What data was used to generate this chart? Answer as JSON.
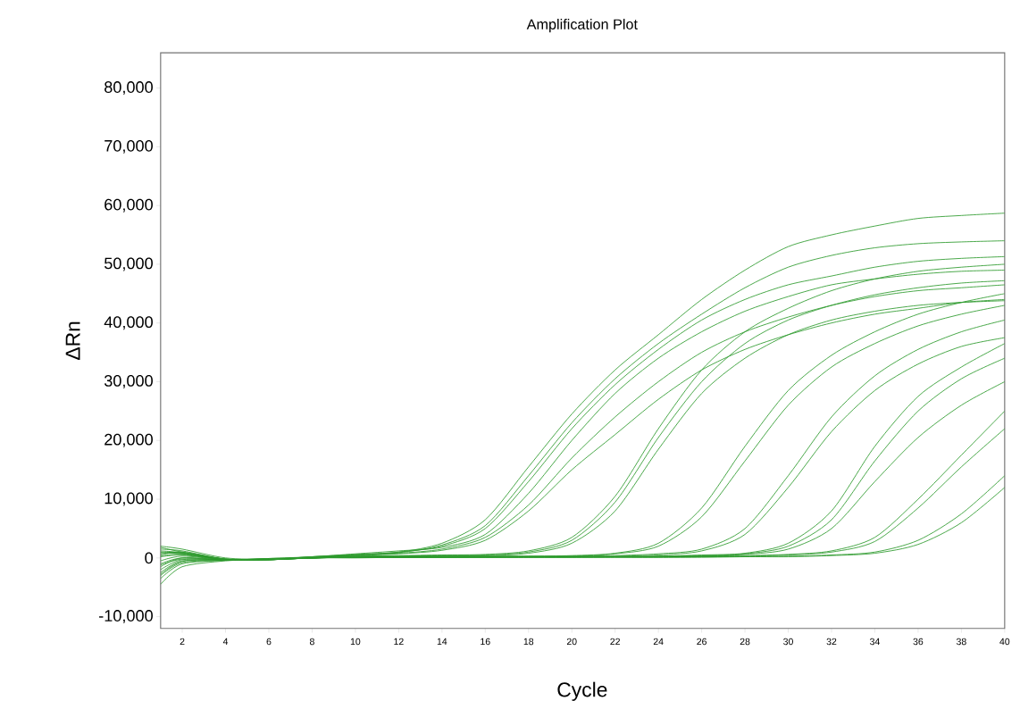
{
  "chart_data": {
    "type": "line",
    "title": "Amplification Plot",
    "xlabel": "Cycle",
    "ylabel": "ΔRn",
    "x": [
      1,
      2,
      4,
      6,
      8,
      10,
      12,
      14,
      16,
      18,
      20,
      22,
      24,
      26,
      28,
      30,
      32,
      34,
      36,
      38,
      40
    ],
    "xlim": [
      1,
      40
    ],
    "xticks": [
      2,
      4,
      6,
      8,
      10,
      12,
      14,
      16,
      18,
      20,
      22,
      24,
      26,
      28,
      30,
      32,
      34,
      36,
      38,
      40
    ],
    "ylim": [
      -12000,
      86000
    ],
    "yticks": [
      {
        "value": -10000,
        "label": "-10,000"
      },
      {
        "value": 0,
        "label": "0"
      },
      {
        "value": 10000,
        "label": "10,000"
      },
      {
        "value": 20000,
        "label": "20,000"
      },
      {
        "value": 30000,
        "label": "30,000"
      },
      {
        "value": 40000,
        "label": "40,000"
      },
      {
        "value": 50000,
        "label": "50,000"
      },
      {
        "value": 60000,
        "label": "60,000"
      },
      {
        "value": 70000,
        "label": "70,000"
      },
      {
        "value": 80000,
        "label": "80,000"
      }
    ],
    "grid": false,
    "legend": false,
    "marker": "none",
    "line_style": "solid",
    "series": [
      {
        "color": "#2e9a2e",
        "values": [
          2000,
          1500,
          0,
          -200,
          200,
          600,
          1000,
          2500,
          6500,
          15500,
          24500,
          32000,
          38000,
          44000,
          49000,
          53000,
          55000,
          56500,
          57800,
          58300,
          58700
        ]
      },
      {
        "color": "#2e9a2e",
        "values": [
          -4500,
          -1500,
          -500,
          -200,
          100,
          500,
          900,
          2200,
          5500,
          14000,
          23000,
          30500,
          36500,
          41500,
          46000,
          49500,
          51500,
          52800,
          53500,
          53800,
          54000
        ]
      },
      {
        "color": "#2e9a2e",
        "values": [
          1000,
          800,
          -300,
          -300,
          200,
          500,
          1000,
          2000,
          5000,
          13000,
          22000,
          29500,
          35500,
          40500,
          44000,
          46500,
          48000,
          49500,
          50500,
          51000,
          51300
        ]
      },
      {
        "color": "#2e9a2e",
        "values": [
          -2500,
          -500,
          -400,
          -100,
          200,
          700,
          1200,
          1800,
          4000,
          11000,
          20000,
          28000,
          34000,
          38500,
          42000,
          44500,
          46500,
          47500,
          48300,
          48800,
          49000
        ]
      },
      {
        "color": "#2e9a2e",
        "values": [
          500,
          1000,
          -200,
          -300,
          100,
          500,
          800,
          1500,
          3500,
          9000,
          17000,
          24000,
          30000,
          35000,
          38500,
          41000,
          43000,
          44500,
          45500,
          46000,
          46500
        ]
      },
      {
        "color": "#2e9a2e",
        "values": [
          -1500,
          0,
          -300,
          -200,
          100,
          400,
          700,
          1300,
          3000,
          8000,
          15000,
          21000,
          27000,
          32000,
          35500,
          38000,
          40000,
          41500,
          42500,
          43500,
          44000
        ]
      },
      {
        "color": "#2e9a2e",
        "values": [
          1500,
          1200,
          -200,
          -300,
          0,
          300,
          400,
          500,
          600,
          1200,
          3500,
          10500,
          22000,
          32000,
          38500,
          42500,
          45500,
          47500,
          48800,
          49500,
          50000
        ]
      },
      {
        "color": "#2e9a2e",
        "values": [
          -1000,
          0,
          -400,
          -200,
          0,
          200,
          300,
          400,
          500,
          1000,
          3000,
          9500,
          20500,
          30000,
          36500,
          40500,
          43000,
          44800,
          46000,
          46800,
          47200
        ]
      },
      {
        "color": "#2e9a2e",
        "values": [
          -3000,
          -800,
          -400,
          -100,
          100,
          300,
          300,
          400,
          400,
          800,
          2500,
          8000,
          18500,
          28000,
          34000,
          38000,
          40500,
          42000,
          43000,
          43500,
          43800
        ]
      },
      {
        "color": "#2e9a2e",
        "values": [
          1800,
          1000,
          -200,
          -300,
          0,
          200,
          200,
          300,
          300,
          300,
          400,
          800,
          2500,
          8500,
          19000,
          28500,
          34500,
          38500,
          41500,
          43500,
          45000
        ]
      },
      {
        "color": "#2e9a2e",
        "values": [
          -2000,
          -300,
          -300,
          -200,
          0,
          200,
          200,
          200,
          300,
          300,
          300,
          700,
          2000,
          7000,
          16500,
          26000,
          32500,
          36500,
          39500,
          41500,
          43000
        ]
      },
      {
        "color": "#2e9a2e",
        "values": [
          700,
          800,
          -300,
          -300,
          0,
          200,
          200,
          200,
          200,
          200,
          300,
          400,
          700,
          1500,
          5000,
          14000,
          24000,
          31000,
          35500,
          38500,
          40500
        ]
      },
      {
        "color": "#2e9a2e",
        "values": [
          -3500,
          -1000,
          -400,
          -200,
          0,
          100,
          200,
          200,
          200,
          200,
          200,
          300,
          500,
          1200,
          4000,
          12000,
          21500,
          28500,
          33000,
          36000,
          37500
        ]
      },
      {
        "color": "#2e9a2e",
        "values": [
          1200,
          900,
          -200,
          -300,
          0,
          100,
          200,
          200,
          200,
          200,
          200,
          200,
          300,
          500,
          800,
          2500,
          8000,
          19000,
          27500,
          32500,
          36500
        ]
      },
      {
        "color": "#2e9a2e",
        "values": [
          -1200,
          -200,
          -300,
          -200,
          0,
          100,
          100,
          200,
          200,
          200,
          200,
          200,
          300,
          400,
          700,
          2000,
          6500,
          16500,
          25000,
          30500,
          34000
        ]
      },
      {
        "color": "#2e9a2e",
        "values": [
          200,
          500,
          -300,
          -300,
          0,
          100,
          100,
          100,
          200,
          200,
          200,
          200,
          200,
          300,
          600,
          1500,
          5000,
          13000,
          20500,
          26000,
          30000
        ]
      },
      {
        "color": "#2e9a2e",
        "values": [
          -500,
          300,
          -300,
          -200,
          0,
          100,
          100,
          100,
          100,
          200,
          200,
          200,
          200,
          300,
          400,
          600,
          1200,
          3500,
          10000,
          17500,
          25000
        ]
      },
      {
        "color": "#2e9a2e",
        "values": [
          900,
          700,
          -200,
          -300,
          0,
          100,
          100,
          100,
          100,
          100,
          100,
          200,
          200,
          200,
          300,
          500,
          1000,
          2800,
          8500,
          15500,
          22000
        ]
      },
      {
        "color": "#2e9a2e",
        "values": [
          -2800,
          -600,
          -300,
          -200,
          0,
          100,
          100,
          100,
          100,
          100,
          100,
          100,
          100,
          200,
          200,
          300,
          500,
          1000,
          3000,
          7500,
          14000
        ]
      },
      {
        "color": "#2e9a2e",
        "values": [
          300,
          600,
          -300,
          -300,
          0,
          0,
          100,
          100,
          100,
          100,
          100,
          100,
          100,
          100,
          200,
          200,
          400,
          800,
          2300,
          6000,
          12000
        ]
      }
    ]
  }
}
